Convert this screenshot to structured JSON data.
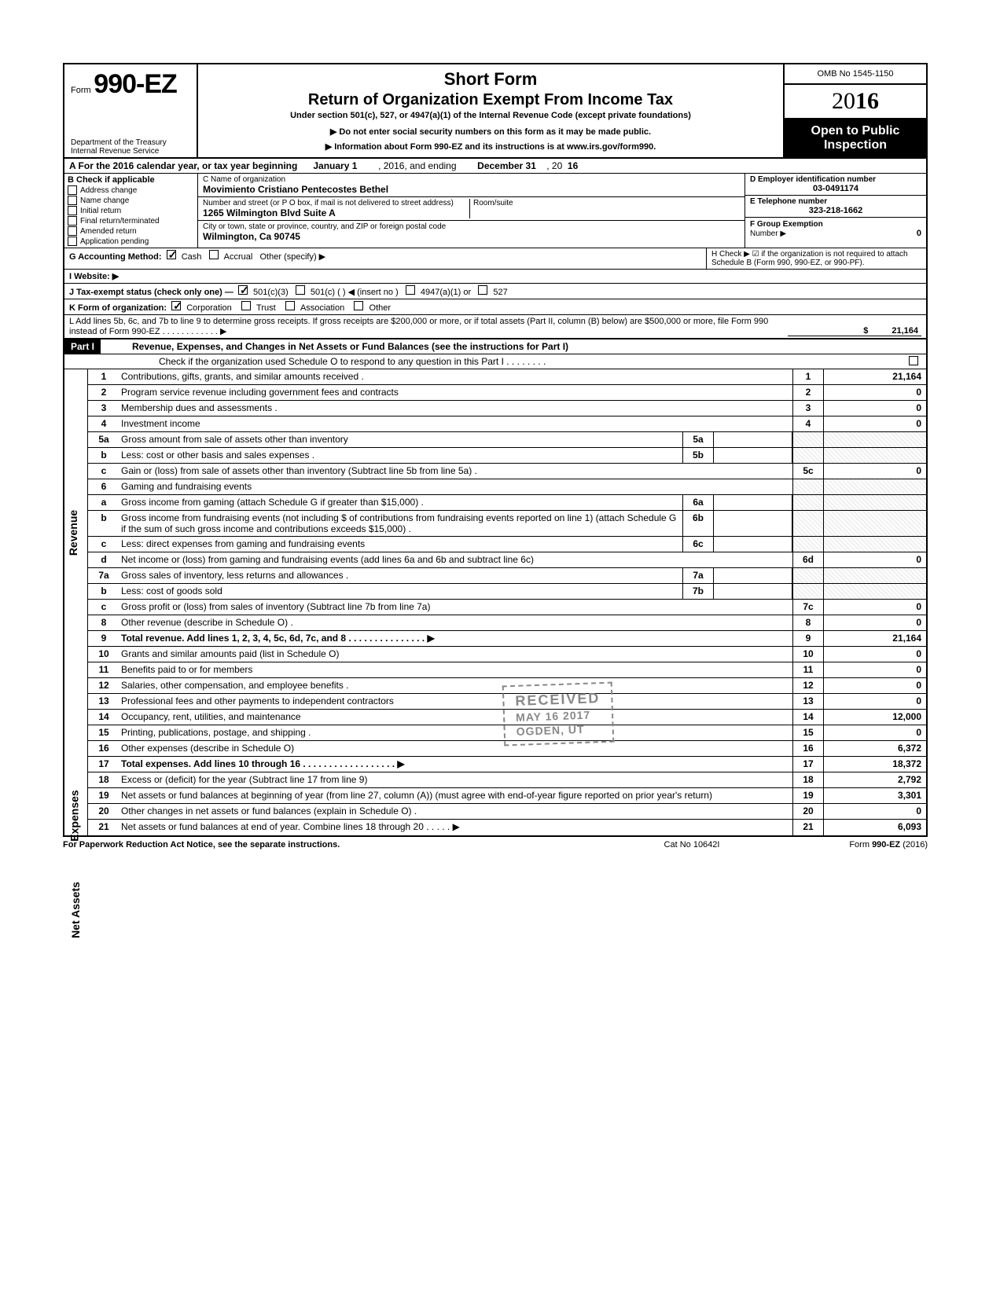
{
  "header": {
    "form_prefix": "Form",
    "form_number": "990-EZ",
    "dept": "Department of the Treasury\nInternal Revenue Service",
    "title1": "Short Form",
    "title2": "Return of Organization Exempt From Income Tax",
    "subtitle": "Under section 501(c), 527, or 4947(a)(1) of the Internal Revenue Code (except private foundations)",
    "note1": "Do not enter social security numbers on this form as it may be made public.",
    "note2": "Information about Form 990-EZ and its instructions is at www.irs.gov/form990.",
    "omb": "OMB No 1545-1150",
    "year_display": "2016",
    "inspect1": "Open to Public",
    "inspect2": "Inspection"
  },
  "line_a": {
    "label": "A For the 2016 calendar year, or tax year beginning",
    "begin": "January 1",
    "mid": ", 2016, and ending",
    "end": "December 31",
    "suffix": ", 20",
    "yy": "16"
  },
  "section_b": {
    "header": "B Check if applicable",
    "items": [
      "Address change",
      "Name change",
      "Initial return",
      "Final return/terminated",
      "Amended return",
      "Application pending"
    ]
  },
  "section_c": {
    "name_label": "C Name of organization",
    "name": "Movimiento Cristiano Pentecostes Bethel",
    "street_label": "Number and street (or P O box, if mail is not delivered to street address)",
    "room_label": "Room/suite",
    "street": "1265 Wilmington Blvd Suite A",
    "city_label": "City or town, state or province, country, and ZIP or foreign postal code",
    "city": "Wilmington, Ca 90745"
  },
  "section_d": {
    "ein_label": "D Employer identification number",
    "ein": "03-0491174",
    "tel_label": "E Telephone number",
    "tel": "323-218-1662",
    "grp_label": "F Group Exemption",
    "grp_num_label": "Number ▶",
    "grp_num": "0"
  },
  "row_g": {
    "label": "G Accounting Method:",
    "cash": "Cash",
    "accrual": "Accrual",
    "other": "Other (specify) ▶"
  },
  "row_h": {
    "text": "H Check ▶ ☑ if the organization is not required to attach Schedule B (Form 990, 990-EZ, or 990-PF)."
  },
  "row_i": {
    "label": "I Website: ▶"
  },
  "row_j": {
    "label": "J Tax-exempt status (check only one) —",
    "o1": "501(c)(3)",
    "o2": "501(c) (        ) ◀ (insert no )",
    "o3": "4947(a)(1) or",
    "o4": "527"
  },
  "row_k": {
    "label": "K Form of organization:",
    "o1": "Corporation",
    "o2": "Trust",
    "o3": "Association",
    "o4": "Other"
  },
  "row_l": {
    "text": "L Add lines 5b, 6c, and 7b to line 9 to determine gross receipts. If gross receipts are $200,000 or more, or if total assets (Part II, column (B) below) are $500,000 or more, file Form 990 instead of Form 990-EZ . . . . . . . . . . . . ▶",
    "amount": "21,164"
  },
  "part1": {
    "tag": "Part I",
    "title": "Revenue, Expenses, and Changes in Net Assets or Fund Balances (see the instructions for Part I)",
    "check_text": "Check if the organization used Schedule O to respond to any question in this Part I . . . . . . . ."
  },
  "lines": {
    "1": {
      "n": "1",
      "t": "Contributions, gifts, grants, and similar amounts received .",
      "rn": "1",
      "rv": "21,164"
    },
    "2": {
      "n": "2",
      "t": "Program service revenue including government fees and contracts",
      "rn": "2",
      "rv": "0"
    },
    "3": {
      "n": "3",
      "t": "Membership dues and assessments .",
      "rn": "3",
      "rv": "0"
    },
    "4": {
      "n": "4",
      "t": "Investment income",
      "rn": "4",
      "rv": "0"
    },
    "5a": {
      "n": "5a",
      "t": "Gross amount from sale of assets other than inventory",
      "mn": "5a"
    },
    "5b": {
      "n": "b",
      "t": "Less: cost or other basis and sales expenses .",
      "mn": "5b"
    },
    "5c": {
      "n": "c",
      "t": "Gain or (loss) from sale of assets other than inventory (Subtract line 5b from line 5a) .",
      "rn": "5c",
      "rv": "0"
    },
    "6": {
      "n": "6",
      "t": "Gaming and fundraising events"
    },
    "6a": {
      "n": "a",
      "t": "Gross income from gaming (attach Schedule G if greater than $15,000) .",
      "mn": "6a"
    },
    "6b": {
      "n": "b",
      "t": "Gross income from fundraising events (not including  $                  of contributions from fundraising events reported on line 1) (attach Schedule G if the sum of such gross income and contributions exceeds $15,000) .",
      "mn": "6b"
    },
    "6c": {
      "n": "c",
      "t": "Less: direct expenses from gaming and fundraising events",
      "mn": "6c"
    },
    "6d": {
      "n": "d",
      "t": "Net income or (loss) from gaming and fundraising events (add lines 6a and 6b and subtract line 6c)",
      "rn": "6d",
      "rv": "0"
    },
    "7a": {
      "n": "7a",
      "t": "Gross sales of inventory, less returns and allowances .",
      "mn": "7a"
    },
    "7b": {
      "n": "b",
      "t": "Less: cost of goods sold",
      "mn": "7b"
    },
    "7c": {
      "n": "c",
      "t": "Gross profit or (loss) from sales of inventory (Subtract line 7b from line 7a)",
      "rn": "7c",
      "rv": "0"
    },
    "8": {
      "n": "8",
      "t": "Other revenue (describe in Schedule O) .",
      "rn": "8",
      "rv": "0"
    },
    "9": {
      "n": "9",
      "t": "Total revenue. Add lines 1, 2, 3, 4, 5c, 6d, 7c, and 8  .  .  .  .  .  .  .  .  .  .  .  .  .  .  . ▶",
      "rn": "9",
      "rv": "21,164",
      "bold": true
    },
    "10": {
      "n": "10",
      "t": "Grants and similar amounts paid (list in Schedule O)",
      "rn": "10",
      "rv": "0"
    },
    "11": {
      "n": "11",
      "t": "Benefits paid to or for members",
      "rn": "11",
      "rv": "0"
    },
    "12": {
      "n": "12",
      "t": "Salaries, other compensation, and employee benefits .",
      "rn": "12",
      "rv": "0"
    },
    "13": {
      "n": "13",
      "t": "Professional fees and other payments to independent contractors",
      "rn": "13",
      "rv": "0"
    },
    "14": {
      "n": "14",
      "t": "Occupancy, rent, utilities, and maintenance",
      "rn": "14",
      "rv": "12,000"
    },
    "15": {
      "n": "15",
      "t": "Printing, publications, postage, and shipping .",
      "rn": "15",
      "rv": "0"
    },
    "16": {
      "n": "16",
      "t": "Other expenses (describe in Schedule O)",
      "rn": "16",
      "rv": "6,372"
    },
    "17": {
      "n": "17",
      "t": "Total expenses. Add lines 10 through 16  .  .  .  .  .  .  .  .  .  .  .  .  .  .  .  .  .  . ▶",
      "rn": "17",
      "rv": "18,372",
      "bold": true
    },
    "18": {
      "n": "18",
      "t": "Excess or (deficit) for the year (Subtract line 17 from line 9)",
      "rn": "18",
      "rv": "2,792"
    },
    "19": {
      "n": "19",
      "t": "Net assets or fund balances at beginning of year (from line 27, column (A)) (must agree with end-of-year figure reported on prior year's return)",
      "rn": "19",
      "rv": "3,301"
    },
    "20": {
      "n": "20",
      "t": "Other changes in net assets or fund balances (explain in Schedule O) .",
      "rn": "20",
      "rv": "0"
    },
    "21": {
      "n": "21",
      "t": "Net assets or fund balances at end of year. Combine lines 18 through 20  .  .  .  .  . ▶",
      "rn": "21",
      "rv": "6,093"
    }
  },
  "side_labels": {
    "rev": "Revenue",
    "exp": "Expenses",
    "net": "Net Assets"
  },
  "footer": {
    "left": "For Paperwork Reduction Act Notice, see the separate instructions.",
    "center": "Cat No 10642I",
    "right": "Form 990-EZ (2016)"
  },
  "stamp": {
    "l1": "RECEIVED",
    "l2": "MAY 16 2017",
    "l3": "OGDEN, UT"
  },
  "colors": {
    "black": "#000000",
    "white": "#ffffff",
    "grey": "#e8e8e8"
  }
}
